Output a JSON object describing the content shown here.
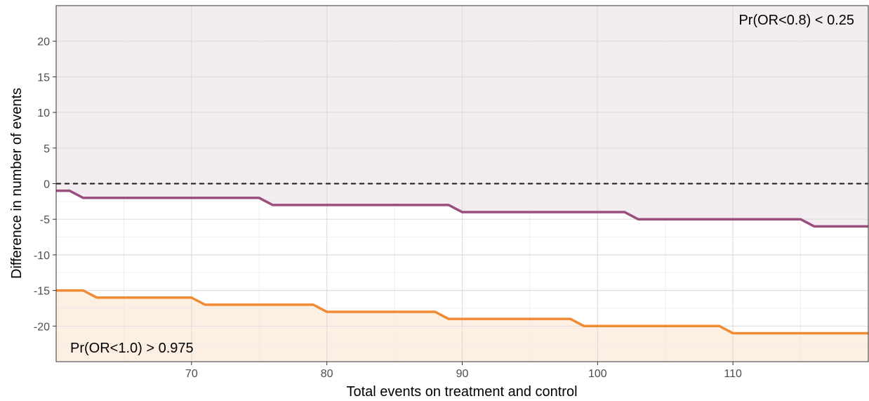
{
  "chart_data": {
    "type": "line",
    "title": "",
    "xlabel": "Total events on treatment and control",
    "ylabel": "Difference in number of events",
    "xlim": [
      60,
      120
    ],
    "ylim": [
      -25,
      25
    ],
    "x_ticks": [
      70,
      80,
      90,
      100,
      110
    ],
    "y_ticks": [
      20,
      15,
      10,
      5,
      0,
      -5,
      -10,
      -15,
      -20
    ],
    "reference_line": {
      "y": 0,
      "style": "dashed",
      "color": "#1a1a1a"
    },
    "grid": true,
    "legend": "none",
    "series": [
      {
        "color": "#9b4f7f",
        "fill": "above",
        "fill_color": "#f3ecf1",
        "points": [
          [
            60,
            -1
          ],
          [
            61,
            -1
          ],
          [
            62,
            -2
          ],
          [
            75,
            -2
          ],
          [
            76,
            -3
          ],
          [
            89,
            -3
          ],
          [
            90,
            -4
          ],
          [
            102,
            -4
          ],
          [
            103,
            -5
          ],
          [
            115,
            -5
          ],
          [
            116,
            -6
          ],
          [
            120,
            -6
          ]
        ]
      },
      {
        "color": "#f08a33",
        "fill": "below",
        "fill_color": "#fdf0e3",
        "points": [
          [
            60,
            -15
          ],
          [
            62,
            -15
          ],
          [
            63,
            -16
          ],
          [
            70,
            -16
          ],
          [
            71,
            -17
          ],
          [
            79,
            -17
          ],
          [
            80,
            -18
          ],
          [
            88,
            -18
          ],
          [
            89,
            -19
          ],
          [
            98,
            -19
          ],
          [
            99,
            -20
          ],
          [
            109,
            -20
          ],
          [
            110,
            -21
          ],
          [
            120,
            -21
          ]
        ]
      }
    ],
    "annotations": [
      {
        "text": "Pr(OR<0.8) < 0.25",
        "position": "top-right"
      },
      {
        "text": "Pr(OR<1.0) > 0.975",
        "position": "bottom-left"
      }
    ]
  }
}
